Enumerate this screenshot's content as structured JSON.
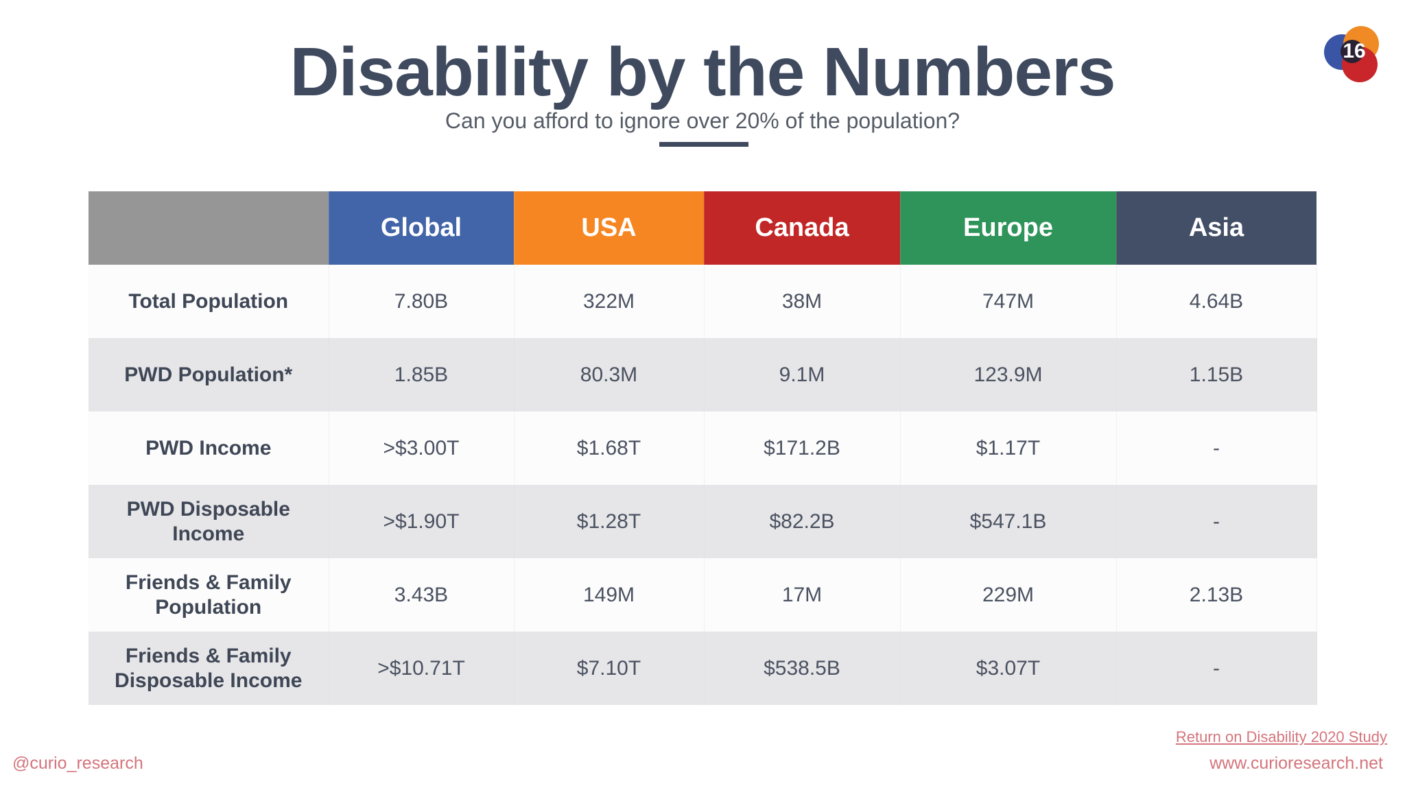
{
  "slide": {
    "title": "Disability by the Numbers",
    "subtitle": "Can you afford to ignore over 20% of the population?",
    "page_number": "16"
  },
  "table": {
    "columns": [
      "",
      "Global",
      "USA",
      "Canada",
      "Europe",
      "Asia"
    ],
    "column_colors": [
      "#969696",
      "#4264a8",
      "#f68622",
      "#c22727",
      "#2f945a",
      "#434f66"
    ],
    "rows": [
      {
        "label": "Total Population",
        "values": [
          "7.80B",
          "322M",
          "38M",
          "747M",
          "4.64B"
        ]
      },
      {
        "label": "PWD Population*",
        "values": [
          "1.85B",
          "80.3M",
          "9.1M",
          "123.9M",
          "1.15B"
        ]
      },
      {
        "label": "PWD Income",
        "values": [
          ">$3.00T",
          "$1.68T",
          "$171.2B",
          "$1.17T",
          "-"
        ]
      },
      {
        "label": "PWD Disposable Income",
        "values": [
          ">$1.90T",
          "$1.28T",
          "$82.2B",
          "$547.1B",
          "-"
        ]
      },
      {
        "label_line1": "Friends & Family",
        "label_line2": "Population",
        "values": [
          "3.43B",
          "149M",
          "17M",
          "229M",
          "2.13B"
        ]
      },
      {
        "label_line1": "Friends & Family",
        "label_line2": "Disposable Income",
        "values": [
          ">$10.71T",
          "$7.10T",
          "$538.5B",
          "$3.07T",
          "-"
        ]
      }
    ]
  },
  "footer": {
    "handle": "@curio_research",
    "source_link": "Return on Disability 2020 Study",
    "website": "www.curioresearch.net"
  }
}
